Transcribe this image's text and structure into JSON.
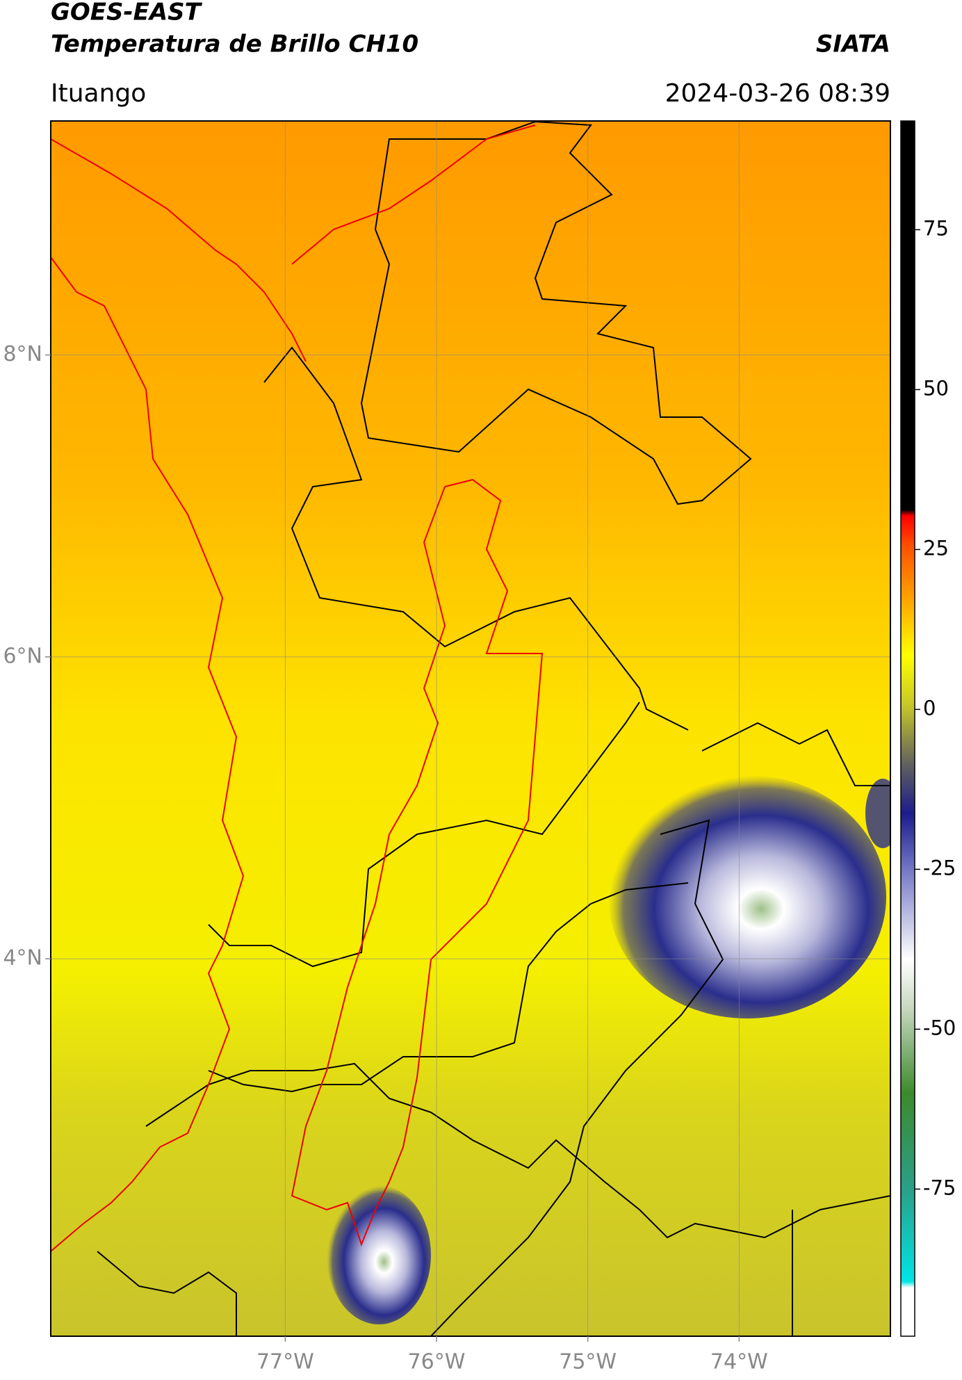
{
  "map": {
    "title": "GOES-EAST",
    "subtitle": "Temperatura de Brillo CH10",
    "agency": "SIATA",
    "location": "Ituango",
    "datetime": "2024-03-26 08:39",
    "xlim": [
      -78.55,
      -73.0
    ],
    "ylim": [
      1.5,
      9.55
    ],
    "xticks": [
      {
        "value": -77,
        "label": "77°W"
      },
      {
        "value": -76,
        "label": "76°W"
      },
      {
        "value": -75,
        "label": "75°W"
      },
      {
        "value": -74,
        "label": "74°W"
      }
    ],
    "yticks": [
      {
        "value": 4,
        "label": "4°N"
      },
      {
        "value": 6,
        "label": "6°N"
      },
      {
        "value": 8,
        "label": "8°N"
      }
    ],
    "grid": true,
    "colorbar": {
      "lim": [
        -98,
        92
      ],
      "ticks": [
        -75,
        -50,
        -25,
        0,
        25,
        50,
        75
      ]
    }
  }
}
